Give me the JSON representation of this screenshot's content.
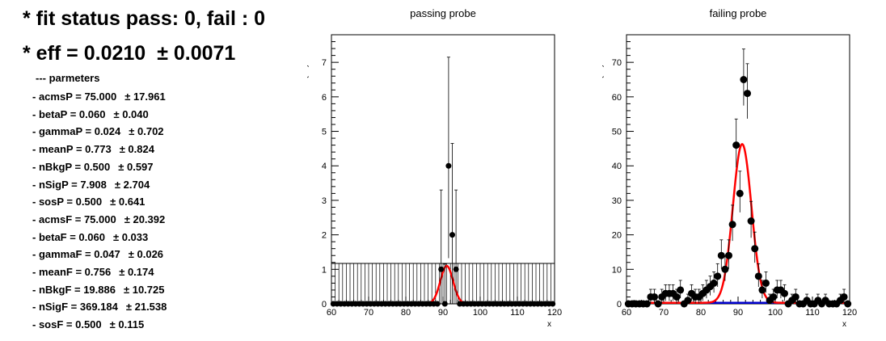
{
  "status_line": "* fit status pass: 0, fail : 0",
  "efficiency": {
    "label": "* eff = 0.0210",
    "error": "± 0.0071"
  },
  "params_header": "--- parmeters",
  "parameters": [
    {
      "label": "- acmsP = 75.000",
      "error": "± 17.961"
    },
    {
      "label": "- betaP = 0.060",
      "error": "± 0.040"
    },
    {
      "label": "- gammaP = 0.024",
      "error": "± 0.702"
    },
    {
      "label": "- meanP = 0.773",
      "error": "± 0.824"
    },
    {
      "label": "- nBkgP = 0.500",
      "error": "± 0.597"
    },
    {
      "label": "- nSigP = 7.908",
      "error": "± 2.704"
    },
    {
      "label": "- sosP = 0.500",
      "error": "± 0.641"
    },
    {
      "label": "- acmsF = 75.000",
      "error": "± 20.392"
    },
    {
      "label": "- betaF = 0.060",
      "error": "± 0.033"
    },
    {
      "label": "- gammaF = 0.047",
      "error": "± 0.026"
    },
    {
      "label": "- meanF = 0.756",
      "error": "± 0.174"
    },
    {
      "label": "- nBkgF = 19.886",
      "error": "± 10.725"
    },
    {
      "label": "- nSigF = 369.184",
      "error": "± 21.538"
    },
    {
      "label": "- sosF = 0.500",
      "error": "± 0.115"
    }
  ],
  "colors": {
    "fit_curve": "#ff0000",
    "background_curve": "#0000cc",
    "points": "#000000"
  },
  "chart_data": [
    {
      "type": "scatter",
      "title": "passing probe",
      "xlabel": "x",
      "ylabel": "Events / ( 1 )",
      "xlim": [
        60,
        120
      ],
      "ylim": [
        0,
        7.8
      ],
      "xticks": [
        60,
        70,
        80,
        90,
        100,
        110,
        120
      ],
      "yticks": [
        0,
        1,
        2,
        3,
        4,
        5,
        6,
        7
      ],
      "points": [
        {
          "x": 89,
          "y": 1,
          "err": 2.3
        },
        {
          "x": 90,
          "y": 0,
          "err": 1.15
        },
        {
          "x": 91,
          "y": 4,
          "err": 3.15
        },
        {
          "x": 92,
          "y": 2,
          "err": 2.65
        },
        {
          "x": 93,
          "y": 1,
          "err": 2.3
        }
      ],
      "zero_bins": "all other integer bins from 60 to 119 have 0 events",
      "signal_peak": {
        "mean": 91,
        "sigma": 1.7,
        "amplitude": 1.1
      },
      "error_band_level": 1.17
    },
    {
      "type": "scatter",
      "title": "failing probe",
      "xlabel": "x",
      "ylabel": "Events / ( 1 )",
      "xlim": [
        60,
        120
      ],
      "ylim": [
        0,
        78
      ],
      "xticks": [
        60,
        70,
        80,
        90,
        100,
        110,
        120
      ],
      "yticks": [
        0,
        10,
        20,
        30,
        40,
        50,
        60,
        70
      ],
      "points": [
        {
          "x": 60,
          "y": 0
        },
        {
          "x": 61,
          "y": 0
        },
        {
          "x": 62,
          "y": 0
        },
        {
          "x": 63,
          "y": 0
        },
        {
          "x": 64,
          "y": 0
        },
        {
          "x": 65,
          "y": 0
        },
        {
          "x": 66,
          "y": 2
        },
        {
          "x": 67,
          "y": 2
        },
        {
          "x": 68,
          "y": 0
        },
        {
          "x": 69,
          "y": 2
        },
        {
          "x": 70,
          "y": 3
        },
        {
          "x": 71,
          "y": 3
        },
        {
          "x": 72,
          "y": 3
        },
        {
          "x": 73,
          "y": 2
        },
        {
          "x": 74,
          "y": 4
        },
        {
          "x": 75,
          "y": 0
        },
        {
          "x": 76,
          "y": 1
        },
        {
          "x": 77,
          "y": 3
        },
        {
          "x": 78,
          "y": 2
        },
        {
          "x": 79,
          "y": 2
        },
        {
          "x": 80,
          "y": 3
        },
        {
          "x": 81,
          "y": 4
        },
        {
          "x": 82,
          "y": 5
        },
        {
          "x": 83,
          "y": 6
        },
        {
          "x": 84,
          "y": 8
        },
        {
          "x": 85,
          "y": 14
        },
        {
          "x": 86,
          "y": 10
        },
        {
          "x": 87,
          "y": 14
        },
        {
          "x": 88,
          "y": 23
        },
        {
          "x": 89,
          "y": 46
        },
        {
          "x": 90,
          "y": 32
        },
        {
          "x": 91,
          "y": 65
        },
        {
          "x": 92,
          "y": 61
        },
        {
          "x": 93,
          "y": 24
        },
        {
          "x": 94,
          "y": 16
        },
        {
          "x": 95,
          "y": 8
        },
        {
          "x": 96,
          "y": 4
        },
        {
          "x": 97,
          "y": 6
        },
        {
          "x": 98,
          "y": 1
        },
        {
          "x": 99,
          "y": 2
        },
        {
          "x": 100,
          "y": 4
        },
        {
          "x": 101,
          "y": 4
        },
        {
          "x": 102,
          "y": 3
        },
        {
          "x": 103,
          "y": 0
        },
        {
          "x": 104,
          "y": 1
        },
        {
          "x": 105,
          "y": 2
        },
        {
          "x": 106,
          "y": 0
        },
        {
          "x": 107,
          "y": 0
        },
        {
          "x": 108,
          "y": 1
        },
        {
          "x": 109,
          "y": 0
        },
        {
          "x": 110,
          "y": 0
        },
        {
          "x": 111,
          "y": 1
        },
        {
          "x": 112,
          "y": 0
        },
        {
          "x": 113,
          "y": 1
        },
        {
          "x": 114,
          "y": 0
        },
        {
          "x": 115,
          "y": 0
        },
        {
          "x": 116,
          "y": 0
        },
        {
          "x": 117,
          "y": 1
        },
        {
          "x": 118,
          "y": 2
        },
        {
          "x": 119,
          "y": 0
        }
      ],
      "signal_peak": {
        "mean": 91.1,
        "sigma": 2.5,
        "amplitude": 46
      },
      "background_level": 0.3
    }
  ]
}
